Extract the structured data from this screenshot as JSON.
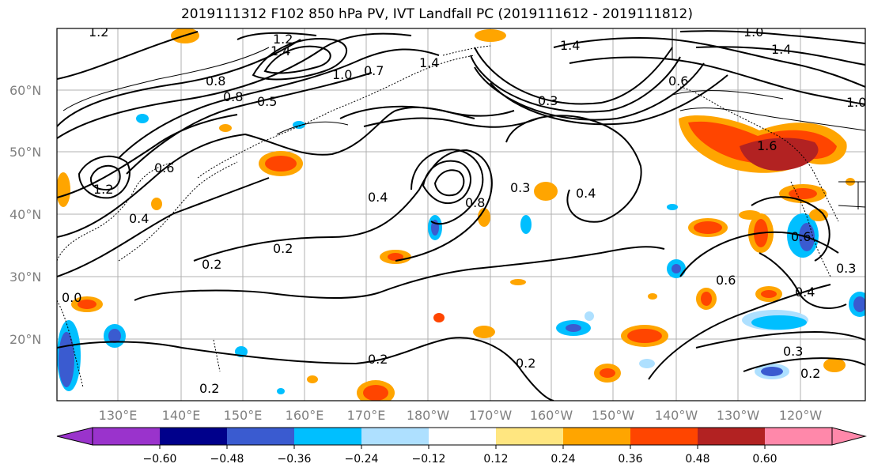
{
  "title": "2019111312 F102 850 hPa PV, IVT Landfall PC (2019111612 - 2019111812)",
  "lat_labels": [
    "60°N",
    "50°N",
    "40°N",
    "30°N",
    "20°N"
  ],
  "lon_labels": [
    "130°E",
    "140°E",
    "150°E",
    "160°E",
    "170°E",
    "180°W",
    "170°W",
    "160°W",
    "150°W",
    "140°W",
    "130°W",
    "120°W"
  ],
  "colorbar": {
    "ticks": [
      "−0.60",
      "−0.48",
      "−0.36",
      "−0.24",
      "−0.12",
      "0.12",
      "0.24",
      "0.36",
      "0.48",
      "0.60"
    ],
    "colors": [
      "#9a33cc",
      "#00008b",
      "#3a5bd0",
      "#00bfff",
      "#aee0ff",
      "#ffffff",
      "#ffe680",
      "#ffa500",
      "#ff4500",
      "#b22222",
      "#ff88aa"
    ]
  },
  "contour_labels": [
    {
      "text": "1.2"
    },
    {
      "text": "1.4"
    },
    {
      "text": "1.2"
    },
    {
      "text": "0.8"
    },
    {
      "text": "0.8"
    },
    {
      "text": "0.5"
    },
    {
      "text": "1.0"
    },
    {
      "text": "1.4"
    },
    {
      "text": "1.4"
    },
    {
      "text": "0.6"
    },
    {
      "text": "0.7"
    },
    {
      "text": "1.6"
    },
    {
      "text": "1.4"
    },
    {
      "text": "1.0"
    },
    {
      "text": "1.2"
    },
    {
      "text": "1.0"
    },
    {
      "text": "0.6"
    },
    {
      "text": "0.4"
    },
    {
      "text": "0.2"
    },
    {
      "text": "0.2"
    },
    {
      "text": "0.4"
    },
    {
      "text": "0.3"
    },
    {
      "text": "0.4"
    },
    {
      "text": "0.6"
    },
    {
      "text": "0.3"
    },
    {
      "text": "0.6"
    },
    {
      "text": "0.4"
    },
    {
      "text": "0.3"
    },
    {
      "text": "0.2"
    },
    {
      "text": "0.2"
    },
    {
      "text": "0.2"
    },
    {
      "text": "0.3"
    },
    {
      "text": "0.2"
    },
    {
      "text": "0.0"
    },
    {
      "text": "0.8"
    }
  ]
}
